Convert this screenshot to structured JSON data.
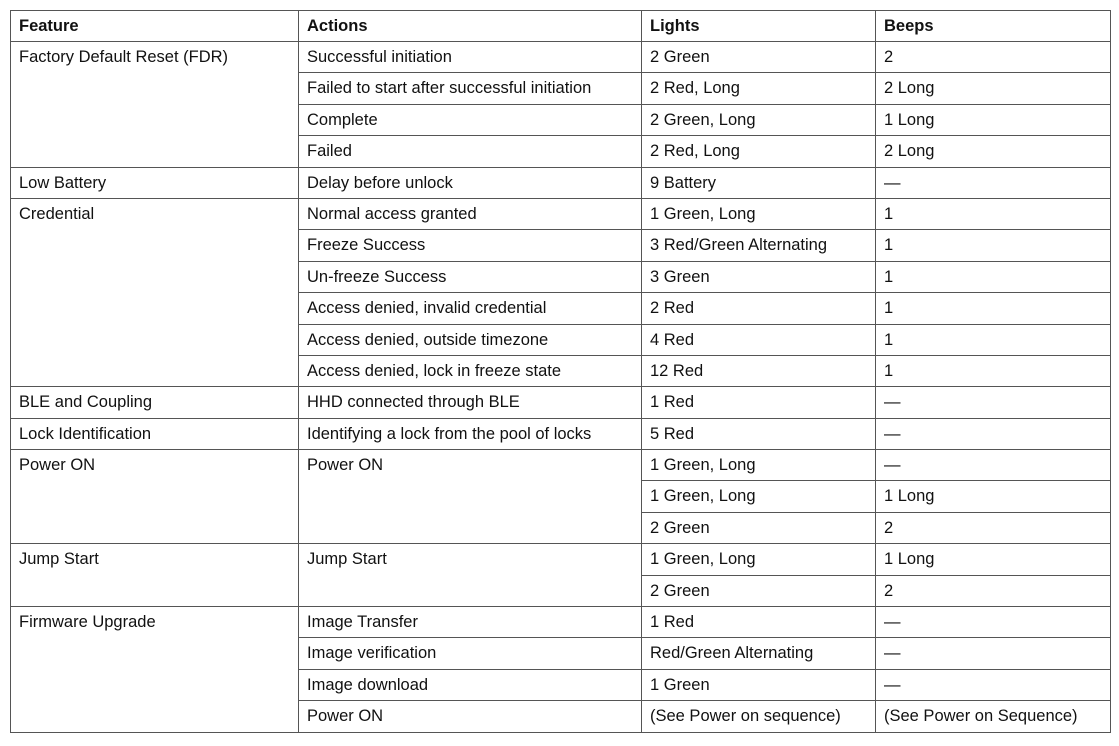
{
  "headers": [
    "Feature",
    "Actions",
    "Lights",
    "Beeps"
  ],
  "groups": [
    {
      "feature": "Factory Default Reset (FDR)",
      "actions": [
        {
          "action": "Successful initiation",
          "rows": [
            [
              "2 Green",
              "2"
            ]
          ]
        },
        {
          "action": "Failed to start after successful initiation",
          "rows": [
            [
              "2 Red, Long",
              "2 Long"
            ]
          ]
        },
        {
          "action": "Complete",
          "rows": [
            [
              "2 Green, Long",
              "1 Long"
            ]
          ]
        },
        {
          "action": "Failed",
          "rows": [
            [
              "2 Red, Long",
              "2 Long"
            ]
          ]
        }
      ]
    },
    {
      "feature": "Low Battery",
      "actions": [
        {
          "action": "Delay before unlock",
          "rows": [
            [
              "9 Battery",
              "—"
            ]
          ]
        }
      ]
    },
    {
      "feature": "Credential",
      "actions": [
        {
          "action": "Normal access granted",
          "rows": [
            [
              "1 Green, Long",
              "1"
            ]
          ]
        },
        {
          "action": "Freeze Success",
          "rows": [
            [
              "3 Red/Green Alternating",
              "1"
            ]
          ]
        },
        {
          "action": "Un-freeze Success",
          "rows": [
            [
              "3 Green",
              "1"
            ]
          ]
        },
        {
          "action": "Access denied, invalid credential",
          "rows": [
            [
              "2 Red",
              "1"
            ]
          ]
        },
        {
          "action": "Access denied, outside timezone",
          "rows": [
            [
              "4 Red",
              "1"
            ]
          ]
        },
        {
          "action": "Access denied, lock in freeze state",
          "rows": [
            [
              "12 Red",
              "1"
            ]
          ]
        }
      ]
    },
    {
      "feature": "BLE and Coupling",
      "actions": [
        {
          "action": "HHD connected through BLE",
          "rows": [
            [
              "1 Red",
              "—"
            ]
          ]
        }
      ]
    },
    {
      "feature": "Lock Identification",
      "actions": [
        {
          "action": "Identifying a lock from the pool of locks",
          "rows": [
            [
              "5 Red",
              "—"
            ]
          ]
        }
      ]
    },
    {
      "feature": "Power ON",
      "actions": [
        {
          "action": "Power ON",
          "rows": [
            [
              "1 Green, Long",
              "—"
            ],
            [
              "1 Green, Long",
              "1 Long"
            ],
            [
              "2 Green",
              "2"
            ]
          ]
        }
      ]
    },
    {
      "feature": "Jump Start",
      "actions": [
        {
          "action": "Jump Start",
          "rows": [
            [
              "1 Green, Long",
              "1 Long"
            ],
            [
              "2 Green",
              "2"
            ]
          ]
        }
      ]
    },
    {
      "feature": "Firmware Upgrade",
      "actions": [
        {
          "action": "Image Transfer",
          "rows": [
            [
              "1 Red",
              "—"
            ]
          ]
        },
        {
          "action": "Image verification",
          "rows": [
            [
              "Red/Green Alternating",
              "—"
            ]
          ]
        },
        {
          "action": "Image download",
          "rows": [
            [
              "1 Green",
              "—"
            ]
          ]
        },
        {
          "action": "Power ON",
          "rows": [
            [
              "(See Power on sequence)",
              "(See Power on Sequence)"
            ]
          ]
        }
      ]
    }
  ]
}
